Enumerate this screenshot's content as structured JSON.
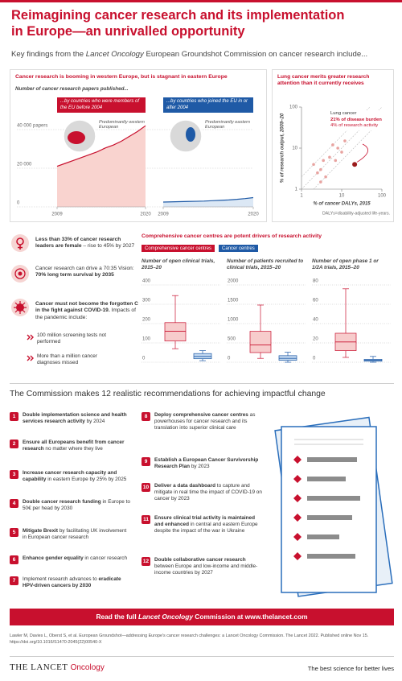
{
  "header": {
    "title": "Reimagining cancer research and its implementation in Europe—an unrivalled opportunity",
    "subtitle": [
      {
        "text": "Key findings from the "
      },
      {
        "text": "Lancet Oncology",
        "italic": true
      },
      {
        "text": " European Groundshot Commission on cancer research include..."
      }
    ]
  },
  "growth_chart": {
    "type": "line",
    "title": "Cancer research is booming in western Europe, but is stagnant in eastern Europe",
    "y_label": "Number of cancer research papers published...",
    "ylim": [
      0,
      50000
    ],
    "yticks": [
      0,
      {
        "value": 20000,
        "label": "20 000"
      },
      {
        "value": 40000,
        "label": "40 000 papers"
      }
    ],
    "x": [
      2009,
      2010,
      2011,
      2012,
      2013,
      2014,
      2015,
      2016,
      2017,
      2018,
      2019,
      2020
    ],
    "xlim": [
      2009,
      2020
    ],
    "xticks": [
      2009,
      2020
    ],
    "grid": true,
    "series": [
      {
        "name": "...by countries who were members of the EU before 2004",
        "map_note": "Predominantly western European",
        "color": "#c8102e",
        "fill": "#f9d3cf",
        "values": [
          21000,
          22500,
          24000,
          25500,
          27000,
          28500,
          30500,
          32000,
          34000,
          36500,
          39000,
          42000
        ]
      },
      {
        "name": "...by countries who joined the EU in or after 2004",
        "map_note": "Predominantly eastern European",
        "color": "#1f5aa6",
        "fill": "#dce8f5",
        "values": [
          2500,
          2600,
          2700,
          2800,
          2900,
          3000,
          3200,
          3400,
          3600,
          3900,
          4300,
          4800
        ]
      }
    ]
  },
  "lung_chart": {
    "type": "scatter",
    "title": "Lung cancer merits greater research attention than it currently receives",
    "x_label": "% of cancer DALYs, 2015",
    "y_label": "% of research output, 2009–20",
    "log_scale": true,
    "xlim": [
      1,
      100
    ],
    "ylim": [
      1,
      100
    ],
    "xticks": [
      1,
      10,
      100
    ],
    "yticks": [
      1,
      10,
      100
    ],
    "color": "#e8a3a0",
    "x": [
      2,
      2.5,
      3,
      3,
      4,
      5,
      6,
      7,
      8,
      10,
      12,
      3.5
    ],
    "y": [
      4,
      2.5,
      3,
      1.5,
      2,
      6,
      12,
      5,
      10,
      8,
      15,
      5
    ],
    "highlight": {
      "label": "Lung cancer",
      "x": 21,
      "y": 4,
      "color": "#9b1b1b",
      "notes": [
        "21% of disease burden",
        "4% of research activity"
      ]
    },
    "footnote": "DALYs=disability-adjusted life-years."
  },
  "facts": [
    {
      "parts": [
        {
          "text": "Less than 33% of cancer research leaders are female",
          "bold": true
        },
        {
          "text": " – rise to 45% by 2027"
        }
      ]
    },
    {
      "parts": [
        {
          "text": "Cancer research can drive a 70:35 Vision: "
        },
        {
          "text": "70% long term survival by 2035",
          "bold": true
        }
      ]
    },
    {
      "parts": [
        {
          "text": "Cancer must not become the forgotten C in the fight against COVID-19.",
          "bold": true
        },
        {
          "text": " Impacts of the pandemic include:"
        }
      ],
      "subitems": [
        "100 million screening tests not performed",
        "More than a million cancer diagnoses missed"
      ]
    }
  ],
  "centres_chart": {
    "type": "box",
    "title": "Comprehensive cancer centres are potent drivers of research activity",
    "series": [
      {
        "name": "Comprehensive cancer centres",
        "color": "#c8102e",
        "fill": "#f7cccc"
      },
      {
        "name": "Cancer centres",
        "color": "#1f5aa6",
        "fill": "#c3d9f0"
      }
    ],
    "panels": [
      {
        "title": "Number of open clinical trials, 2015–20",
        "ylim": [
          0,
          400
        ],
        "yticks": [
          0,
          100,
          200,
          300,
          400
        ],
        "boxes": [
          {
            "min": 70,
            "q1": 110,
            "median": 160,
            "q3": 205,
            "max": 345
          },
          {
            "min": 8,
            "q1": 18,
            "median": 30,
            "q3": 45,
            "max": 60
          }
        ]
      },
      {
        "title": "Number of patients recruited to clinical trials, 2015–20",
        "ylim": [
          0,
          2000
        ],
        "yticks": [
          0,
          500,
          1000,
          1500,
          2000
        ],
        "boxes": [
          {
            "min": 100,
            "q1": 250,
            "median": 450,
            "q3": 800,
            "max": 1480
          },
          {
            "min": 0,
            "q1": 50,
            "median": 100,
            "q3": 170,
            "max": 260
          }
        ]
      },
      {
        "title": "Number of open phase 1 or 1/2A trials, 2015–20",
        "ylim": [
          0,
          80
        ],
        "yticks": [
          0,
          20,
          40,
          60,
          80
        ],
        "boxes": [
          {
            "min": 5,
            "q1": 12,
            "median": 21,
            "q3": 30,
            "max": 76
          },
          {
            "min": 0,
            "q1": 1,
            "median": 2,
            "q3": 3,
            "max": 6
          }
        ]
      }
    ]
  },
  "recommendations": {
    "heading": "The Commission makes 12 realistic recommendations for achieving impactful change",
    "items": [
      {
        "number": 1,
        "parts": [
          {
            "text": "Double implementation science and health services research activity",
            "bold": true
          },
          {
            "text": " by 2024"
          }
        ]
      },
      {
        "number": 2,
        "parts": [
          {
            "text": "Ensure all Europeans benefit from cancer research",
            "bold": true
          },
          {
            "text": " no matter where they live"
          }
        ]
      },
      {
        "number": 3,
        "parts": [
          {
            "text": "Increase cancer research capacity and capability",
            "bold": true
          },
          {
            "text": " in eastern Europe by 25% by 2025"
          }
        ]
      },
      {
        "number": 4,
        "parts": [
          {
            "text": "Double cancer research funding",
            "bold": true
          },
          {
            "text": " in Europe to 50€ per head by 2030"
          }
        ]
      },
      {
        "number": 5,
        "parts": [
          {
            "text": "Mitigate Brexit",
            "bold": true
          },
          {
            "text": " by facilitating UK involvement in European cancer research"
          }
        ]
      },
      {
        "number": 6,
        "parts": [
          {
            "text": "Enhance gender equality",
            "bold": true
          },
          {
            "text": " in cancer research"
          }
        ]
      },
      {
        "number": 7,
        "parts": [
          {
            "text": "Implement research advances to "
          },
          {
            "text": "eradicate HPV-driven cancers by 2030",
            "bold": true
          }
        ]
      },
      {
        "number": 8,
        "parts": [
          {
            "text": "Deploy comprehensive cancer centres",
            "bold": true
          },
          {
            "text": " as powerhouses for cancer research and its translation into superior clinical care"
          }
        ]
      },
      {
        "number": 9,
        "parts": [
          {
            "text": "Establish a European Cancer Survivorship Research Plan",
            "bold": true
          },
          {
            "text": " by 2023"
          }
        ]
      },
      {
        "number": 10,
        "parts": [
          {
            "text": "Deliver a data dashboard",
            "bold": true
          },
          {
            "text": " to capture and mitigate in real time the impact of COVID-19 on cancer by 2023"
          }
        ]
      },
      {
        "number": 11,
        "parts": [
          {
            "text": "Ensure clinical trial activity is maintained and enhanced",
            "bold": true
          },
          {
            "text": " in central and eastern Europe despite the impact of the war in Ukraine"
          }
        ]
      },
      {
        "number": 12,
        "parts": [
          {
            "text": "Double collaborative cancer research",
            "bold": true
          },
          {
            "text": " between Europe and low-income and middle-income countries by 2027"
          }
        ]
      }
    ]
  },
  "cta": [
    {
      "text": "Read the full "
    },
    {
      "text": "Lancet Oncology",
      "italic": true
    },
    {
      "text": " Commission at www.thelancet.com"
    }
  ],
  "citation": "Lawler M, Davies L, Oberst S, et al. European Groundshot—addressing Europe's cancer research challenges: a Lancet Oncology Commission. The Lancet 2022. Published online Nov 15. https://doi.org/10.1016/S1470-2045(22)00540-X",
  "footer": {
    "brand": "THE LANCET",
    "journal": "Oncology",
    "tagline": "The best science for better lives"
  }
}
